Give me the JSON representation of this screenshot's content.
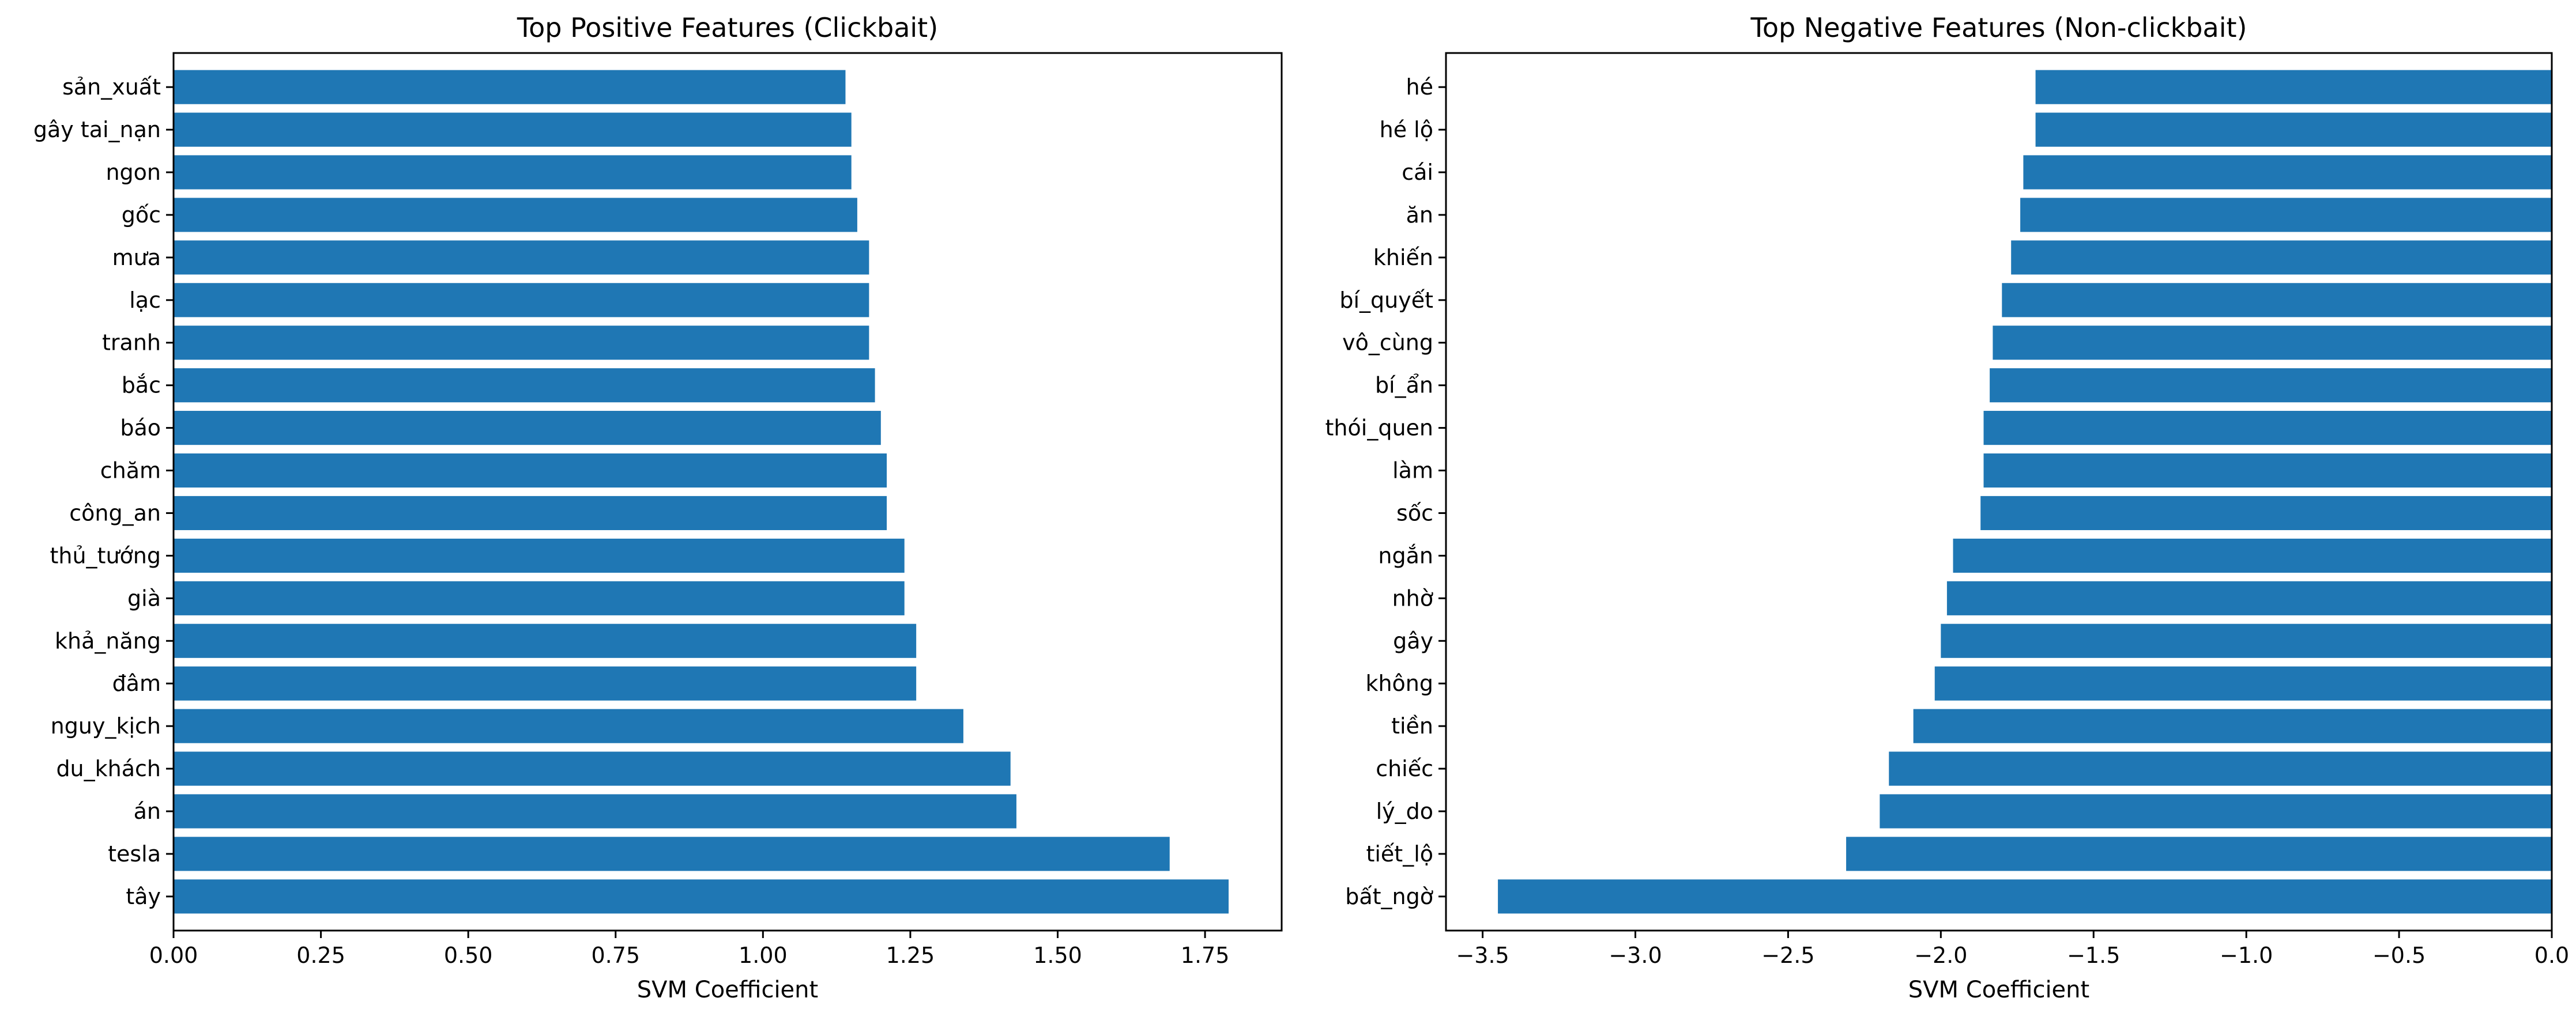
{
  "figure": {
    "bar_color": "#1f77b4"
  },
  "chart_data": [
    {
      "type": "bar",
      "orientation": "horizontal",
      "title": "Top Positive Features (Clickbait)",
      "xlabel": "SVM Coefficient",
      "ylabel": "",
      "xlim": [
        0,
        1.88
      ],
      "xticks": [
        "0.00",
        "0.25",
        "0.50",
        "0.75",
        "1.00",
        "1.25",
        "1.50",
        "1.75"
      ],
      "grid": false,
      "legend": "none",
      "categories": [
        "tây",
        "tesla",
        "án",
        "du_khách",
        "nguy_kịch",
        "đâm",
        "khả_năng",
        "già",
        "thủ_tướng",
        "công_an",
        "chăm",
        "báo",
        "bắc",
        "tranh",
        "lạc",
        "mưa",
        "gốc",
        "ngon",
        "gây tai_nạn",
        "sản_xuất"
      ],
      "values": [
        1.79,
        1.69,
        1.43,
        1.42,
        1.34,
        1.26,
        1.26,
        1.24,
        1.24,
        1.21,
        1.21,
        1.2,
        1.19,
        1.18,
        1.18,
        1.18,
        1.16,
        1.15,
        1.15,
        1.14
      ]
    },
    {
      "type": "bar",
      "orientation": "horizontal",
      "title": "Top Negative Features (Non-clickbait)",
      "xlabel": "SVM Coefficient",
      "ylabel": "",
      "xlim": [
        -3.62,
        0
      ],
      "xticks": [
        "−3.5",
        "−3.0",
        "−2.5",
        "−2.0",
        "−1.5",
        "−1.0",
        "−0.5",
        "0.0"
      ],
      "grid": false,
      "legend": "none",
      "categories": [
        "bất_ngờ",
        "tiết_lộ",
        "lý_do",
        "chiếc",
        "tiền",
        "không",
        "gây",
        "nhờ",
        "ngắn",
        "sốc",
        "làm",
        "thói_quen",
        "bí_ẩn",
        "vô_cùng",
        "bí_quyết",
        "khiến",
        "ăn",
        "cái",
        "hé lộ",
        "hé"
      ],
      "values": [
        -3.45,
        -2.31,
        -2.2,
        -2.17,
        -2.09,
        -2.02,
        -2.0,
        -1.98,
        -1.96,
        -1.87,
        -1.86,
        -1.86,
        -1.84,
        -1.83,
        -1.8,
        -1.77,
        -1.74,
        -1.73,
        -1.69,
        -1.69
      ]
    }
  ]
}
